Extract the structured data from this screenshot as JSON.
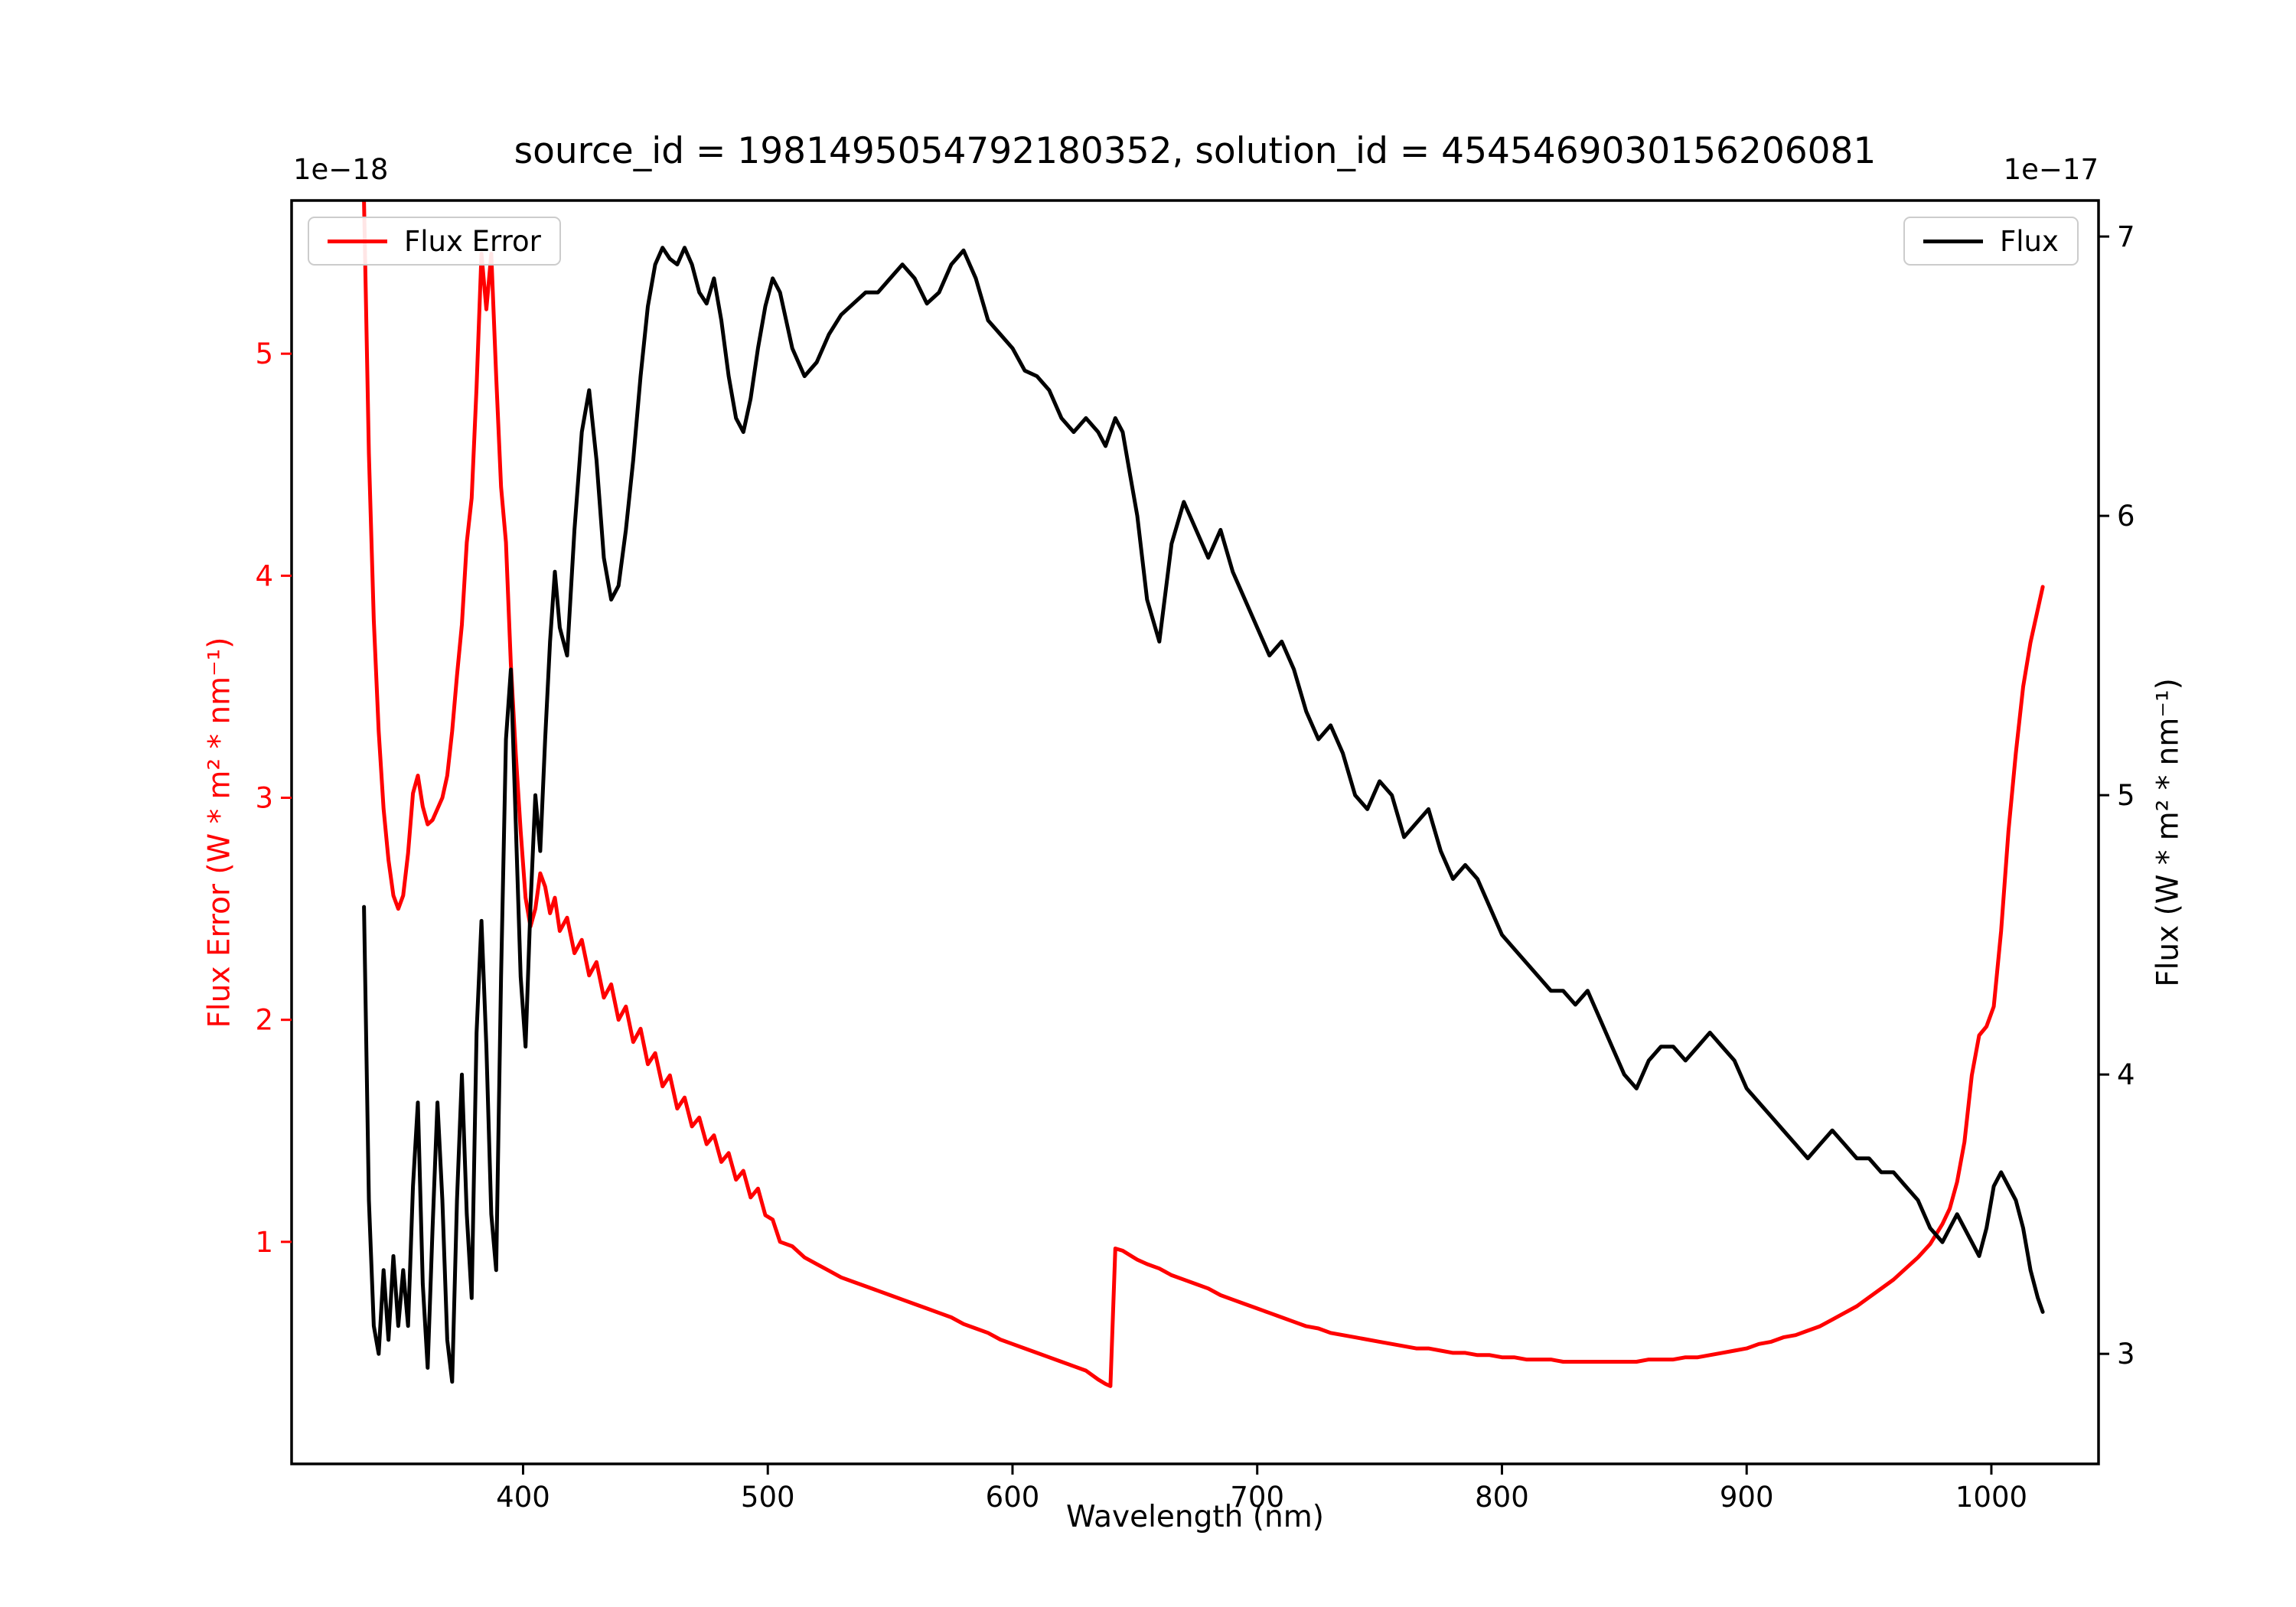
{
  "figure": {
    "title": "source_id = 1981495054792180352, solution_id = 4545469030156206081",
    "background": "#ffffff"
  },
  "axes": {
    "xlabel": "Wavelength (nm)",
    "ylabel_left": "Flux Error (W * m² * nm⁻¹)",
    "ylabel_right": "Flux (W * m² * nm⁻¹)",
    "left_offset_text": "1e−18",
    "right_offset_text": "1e−17",
    "x_ticks": [
      400,
      500,
      600,
      700,
      800,
      900,
      1000
    ],
    "left_y_ticks": [
      1,
      2,
      3,
      4,
      5
    ],
    "right_y_ticks": [
      3,
      4,
      5,
      6,
      7
    ],
    "left_color": "#ff0000",
    "right_color": "#000000"
  },
  "legends": {
    "flux_error": {
      "label": "Flux Error",
      "color": "#ff0000"
    },
    "flux": {
      "label": "Flux",
      "color": "#000000"
    }
  },
  "chart_data": {
    "type": "line",
    "title": "source_id = 1981495054792180352, solution_id = 4545469030156206081",
    "xlabel": "Wavelength (nm)",
    "ylabel_left": "Flux Error (W * m² * nm⁻¹), scale 1e-18",
    "ylabel_right": "Flux (W * m² * nm⁻¹), scale 1e-17",
    "grid": false,
    "legend_positions": [
      "upper left",
      "upper right"
    ],
    "xlim": [
      305.4,
      1043.8
    ],
    "ylim_left": [
      0.0,
      5.69
    ],
    "ylim_right": [
      2.606,
      7.129
    ],
    "x": [
      335,
      337,
      339,
      341,
      343,
      345,
      347,
      349,
      351,
      353,
      355,
      357,
      359,
      361,
      363,
      365,
      367,
      369,
      371,
      373,
      375,
      377,
      379,
      381,
      383,
      385,
      387,
      389,
      391,
      393,
      395,
      397,
      399,
      401,
      403,
      405,
      407,
      409,
      411,
      413,
      415,
      418,
      421,
      424,
      427,
      430,
      433,
      436,
      439,
      442,
      445,
      448,
      451,
      454,
      457,
      460,
      463,
      466,
      469,
      472,
      475,
      478,
      481,
      484,
      487,
      490,
      493,
      496,
      499,
      502,
      505,
      510,
      515,
      520,
      525,
      530,
      535,
      540,
      545,
      550,
      555,
      560,
      565,
      570,
      575,
      580,
      585,
      590,
      595,
      600,
      605,
      610,
      615,
      620,
      625,
      630,
      635,
      638,
      640,
      642,
      645,
      648,
      651,
      655,
      660,
      665,
      670,
      675,
      680,
      685,
      690,
      695,
      700,
      705,
      710,
      715,
      720,
      725,
      730,
      735,
      740,
      745,
      750,
      755,
      760,
      765,
      770,
      775,
      780,
      785,
      790,
      795,
      800,
      805,
      810,
      815,
      820,
      825,
      830,
      835,
      840,
      845,
      850,
      855,
      860,
      865,
      870,
      875,
      880,
      885,
      890,
      895,
      900,
      905,
      910,
      915,
      920,
      925,
      930,
      935,
      940,
      945,
      950,
      955,
      960,
      965,
      970,
      975,
      980,
      983,
      986,
      989,
      992,
      995,
      998,
      1001,
      1004,
      1007,
      1010,
      1013,
      1016,
      1019,
      1021
    ],
    "series": [
      {
        "name": "Flux Error",
        "axis": "left",
        "color": "#ff0000",
        "unit_scale": "1e-18",
        "values": [
          5.69,
          4.55,
          3.8,
          3.3,
          2.95,
          2.72,
          2.56,
          2.5,
          2.56,
          2.75,
          3.02,
          3.1,
          2.96,
          2.88,
          2.9,
          2.95,
          3.0,
          3.1,
          3.3,
          3.55,
          3.78,
          4.15,
          4.35,
          4.85,
          5.45,
          5.2,
          5.45,
          4.9,
          4.4,
          4.15,
          3.6,
          3.2,
          2.85,
          2.55,
          2.42,
          2.5,
          2.66,
          2.6,
          2.48,
          2.55,
          2.4,
          2.46,
          2.3,
          2.36,
          2.2,
          2.26,
          2.1,
          2.16,
          2.0,
          2.06,
          1.9,
          1.96,
          1.8,
          1.85,
          1.7,
          1.75,
          1.6,
          1.65,
          1.52,
          1.56,
          1.44,
          1.48,
          1.36,
          1.4,
          1.28,
          1.32,
          1.2,
          1.24,
          1.12,
          1.1,
          1.0,
          0.98,
          0.93,
          0.9,
          0.87,
          0.84,
          0.82,
          0.8,
          0.78,
          0.76,
          0.74,
          0.72,
          0.7,
          0.68,
          0.66,
          0.63,
          0.61,
          0.59,
          0.56,
          0.54,
          0.52,
          0.5,
          0.48,
          0.46,
          0.44,
          0.42,
          0.38,
          0.36,
          0.35,
          0.97,
          0.96,
          0.94,
          0.92,
          0.9,
          0.88,
          0.85,
          0.83,
          0.81,
          0.79,
          0.76,
          0.74,
          0.72,
          0.7,
          0.68,
          0.66,
          0.64,
          0.62,
          0.61,
          0.59,
          0.58,
          0.57,
          0.56,
          0.55,
          0.54,
          0.53,
          0.52,
          0.52,
          0.51,
          0.5,
          0.5,
          0.49,
          0.49,
          0.48,
          0.48,
          0.47,
          0.47,
          0.47,
          0.46,
          0.46,
          0.46,
          0.46,
          0.46,
          0.46,
          0.46,
          0.47,
          0.47,
          0.47,
          0.48,
          0.48,
          0.49,
          0.5,
          0.51,
          0.52,
          0.54,
          0.55,
          0.57,
          0.58,
          0.6,
          0.62,
          0.65,
          0.68,
          0.71,
          0.75,
          0.79,
          0.83,
          0.88,
          0.93,
          0.99,
          1.08,
          1.15,
          1.27,
          1.45,
          1.75,
          1.93,
          1.97,
          2.06,
          2.4,
          2.85,
          3.2,
          3.5,
          3.7,
          3.85,
          3.95
        ]
      },
      {
        "name": "Flux",
        "axis": "right",
        "color": "#000000",
        "unit_scale": "1e-17",
        "values": [
          4.6,
          3.55,
          3.1,
          3.0,
          3.3,
          3.05,
          3.35,
          3.1,
          3.3,
          3.1,
          3.6,
          3.9,
          3.25,
          2.95,
          3.45,
          3.9,
          3.55,
          3.05,
          2.9,
          3.55,
          4.0,
          3.5,
          3.2,
          4.15,
          4.55,
          4.1,
          3.5,
          3.3,
          4.35,
          5.2,
          5.45,
          4.9,
          4.35,
          4.1,
          4.6,
          5.0,
          4.8,
          5.2,
          5.55,
          5.8,
          5.6,
          5.5,
          5.95,
          6.3,
          6.45,
          6.2,
          5.85,
          5.7,
          5.75,
          5.95,
          6.2,
          6.5,
          6.75,
          6.9,
          6.96,
          6.92,
          6.9,
          6.96,
          6.9,
          6.8,
          6.76,
          6.85,
          6.7,
          6.5,
          6.35,
          6.3,
          6.42,
          6.6,
          6.75,
          6.85,
          6.8,
          6.6,
          6.5,
          6.55,
          6.65,
          6.72,
          6.76,
          6.8,
          6.8,
          6.85,
          6.9,
          6.85,
          6.76,
          6.8,
          6.9,
          6.95,
          6.85,
          6.7,
          6.65,
          6.6,
          6.52,
          6.5,
          6.45,
          6.35,
          6.3,
          6.35,
          6.3,
          6.25,
          6.3,
          6.35,
          6.3,
          6.15,
          6.0,
          5.7,
          5.55,
          5.9,
          6.05,
          5.95,
          5.85,
          5.95,
          5.8,
          5.7,
          5.6,
          5.5,
          5.55,
          5.45,
          5.3,
          5.2,
          5.25,
          5.15,
          5.0,
          4.95,
          5.05,
          5.0,
          4.85,
          4.9,
          4.95,
          4.8,
          4.7,
          4.75,
          4.7,
          4.6,
          4.5,
          4.45,
          4.4,
          4.35,
          4.3,
          4.3,
          4.25,
          4.3,
          4.2,
          4.1,
          4.0,
          3.95,
          4.05,
          4.1,
          4.1,
          4.05,
          4.1,
          4.15,
          4.1,
          4.05,
          3.95,
          3.9,
          3.85,
          3.8,
          3.75,
          3.7,
          3.75,
          3.8,
          3.75,
          3.7,
          3.7,
          3.65,
          3.65,
          3.6,
          3.55,
          3.45,
          3.4,
          3.45,
          3.5,
          3.45,
          3.4,
          3.35,
          3.45,
          3.6,
          3.65,
          3.6,
          3.55,
          3.45,
          3.3,
          3.2,
          3.15
        ]
      }
    ]
  }
}
